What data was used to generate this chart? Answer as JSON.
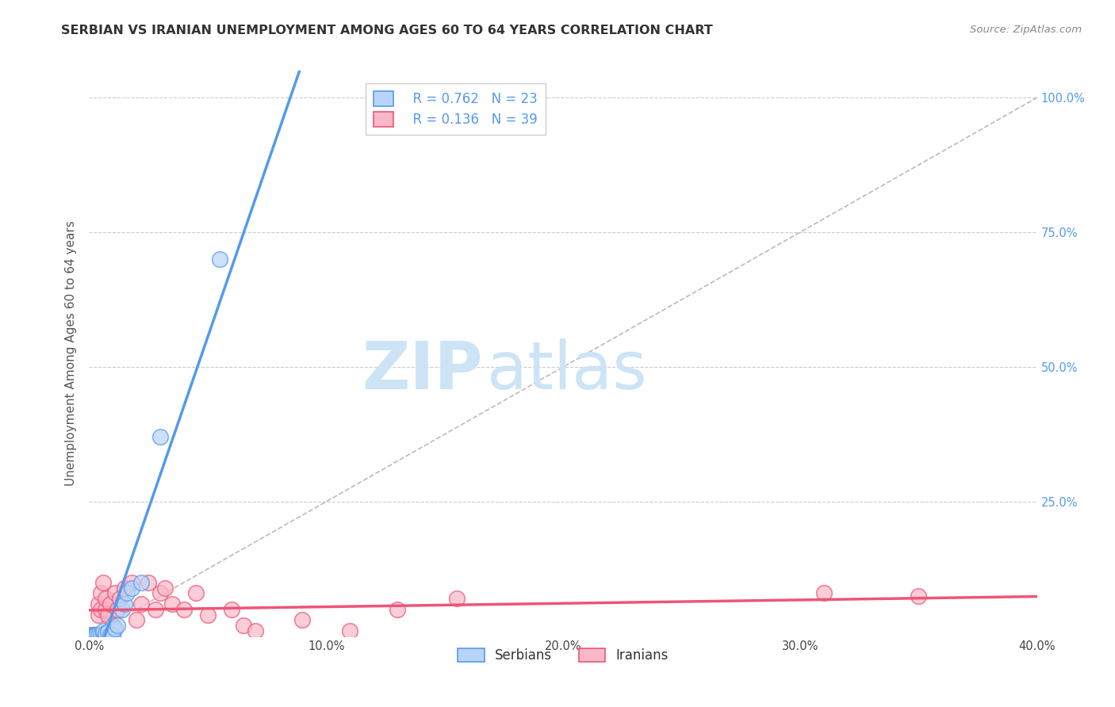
{
  "title": "SERBIAN VS IRANIAN UNEMPLOYMENT AMONG AGES 60 TO 64 YEARS CORRELATION CHART",
  "source": "Source: ZipAtlas.com",
  "ylabel": "Unemployment Among Ages 60 to 64 years",
  "xlim": [
    0.0,
    0.4
  ],
  "ylim": [
    0.0,
    1.05
  ],
  "xtick_labels": [
    "0.0%",
    "10.0%",
    "20.0%",
    "30.0%",
    "40.0%"
  ],
  "xtick_vals": [
    0.0,
    0.1,
    0.2,
    0.3,
    0.4
  ],
  "ytick_labels": [
    "25.0%",
    "50.0%",
    "75.0%",
    "100.0%"
  ],
  "ytick_vals": [
    0.25,
    0.5,
    0.75,
    1.0
  ],
  "serbian_color": "#b8d4f8",
  "iranian_color": "#f8b8c8",
  "serbian_line_color": "#5599ee",
  "iranian_line_color": "#ee5577",
  "diagonal_color": "#bbbbbb",
  "watermark_color": "#cce4f6",
  "legend_serbian_R": "0.762",
  "legend_serbian_N": "23",
  "legend_iranian_R": "0.136",
  "legend_iranian_N": "39",
  "serbian_x": [
    0.001,
    0.002,
    0.002,
    0.003,
    0.003,
    0.004,
    0.005,
    0.006,
    0.006,
    0.007,
    0.008,
    0.009,
    0.01,
    0.01,
    0.011,
    0.012,
    0.014,
    0.015,
    0.016,
    0.018,
    0.022,
    0.03,
    0.055
  ],
  "serbian_y": [
    0.001,
    0.001,
    0.002,
    0.001,
    0.003,
    0.002,
    0.003,
    0.005,
    0.01,
    0.005,
    0.008,
    0.002,
    0.001,
    0.002,
    0.015,
    0.02,
    0.05,
    0.06,
    0.08,
    0.09,
    0.1,
    0.37,
    0.7
  ],
  "iranian_x": [
    0.001,
    0.001,
    0.002,
    0.002,
    0.003,
    0.004,
    0.004,
    0.005,
    0.005,
    0.006,
    0.007,
    0.007,
    0.008,
    0.009,
    0.01,
    0.011,
    0.012,
    0.013,
    0.015,
    0.018,
    0.02,
    0.022,
    0.025,
    0.028,
    0.03,
    0.032,
    0.035,
    0.04,
    0.045,
    0.05,
    0.06,
    0.065,
    0.07,
    0.09,
    0.11,
    0.13,
    0.155,
    0.31,
    0.35
  ],
  "iranian_y": [
    0.001,
    0.002,
    0.001,
    0.003,
    0.002,
    0.04,
    0.06,
    0.05,
    0.08,
    0.1,
    0.05,
    0.07,
    0.04,
    0.06,
    0.02,
    0.08,
    0.05,
    0.07,
    0.09,
    0.1,
    0.03,
    0.06,
    0.1,
    0.05,
    0.08,
    0.09,
    0.06,
    0.05,
    0.08,
    0.04,
    0.05,
    0.02,
    0.01,
    0.03,
    0.01,
    0.05,
    0.07,
    0.08,
    0.075
  ],
  "background_color": "#ffffff",
  "grid_color": "#cccccc",
  "title_fontsize": 11.5,
  "axis_label_fontsize": 11,
  "tick_fontsize": 10.5,
  "legend_fontsize": 12
}
